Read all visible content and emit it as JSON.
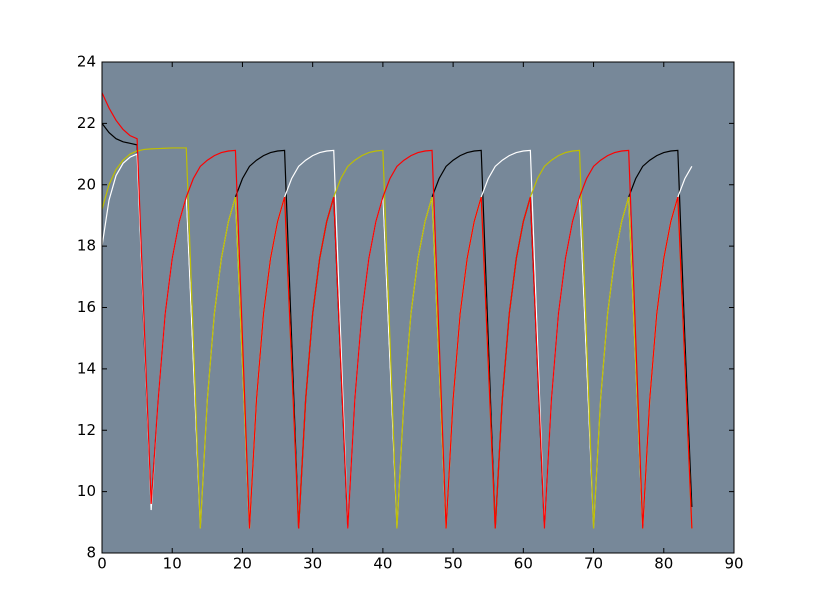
{
  "chart_data": {
    "type": "line",
    "x": [
      0,
      1,
      2,
      3,
      4,
      5,
      6,
      7,
      8,
      9,
      10,
      11,
      12,
      13,
      14,
      15,
      16,
      17,
      18,
      19,
      20,
      21,
      22,
      23,
      24,
      25,
      26,
      27,
      28,
      29,
      30,
      31,
      32,
      33,
      34,
      35,
      36,
      37,
      38,
      39,
      40,
      41,
      42,
      43,
      44,
      45,
      46,
      47,
      48,
      49,
      50,
      51,
      52,
      53,
      54,
      55,
      56,
      57,
      58,
      59,
      60,
      61,
      62,
      63,
      64,
      65,
      66,
      67,
      68,
      69,
      70,
      71,
      72,
      73,
      74,
      75,
      76,
      77,
      78,
      79,
      80,
      81,
      82,
      83,
      84
    ],
    "series": [
      {
        "color": "#000000",
        "values": [
          22.0,
          21.7,
          21.5,
          21.4,
          21.35,
          21.3,
          15.0,
          9.5,
          13.0,
          15.8,
          17.6,
          18.8,
          19.6,
          14.2,
          8.8,
          13.0,
          15.8,
          17.6,
          18.8,
          19.6,
          20.2,
          20.6,
          20.8,
          20.95,
          21.05,
          21.1,
          21.12,
          15.0,
          8.8,
          13.0,
          15.8,
          17.6,
          18.8,
          19.6,
          14.2,
          8.8,
          13.0,
          15.8,
          17.6,
          18.8,
          19.6,
          14.2,
          8.8,
          13.0,
          15.8,
          17.6,
          18.8,
          19.6,
          20.2,
          20.6,
          20.8,
          20.95,
          21.05,
          21.1,
          21.12,
          15.0,
          8.8,
          13.0,
          15.8,
          17.6,
          18.8,
          19.6,
          14.2,
          8.8,
          13.0,
          15.8,
          17.6,
          18.8,
          19.6,
          14.2,
          8.8,
          13.0,
          15.8,
          17.6,
          18.8,
          19.6,
          20.2,
          20.6,
          20.8,
          20.95,
          21.05,
          21.1,
          21.12,
          15.0,
          9.5
        ]
      },
      {
        "color": "#ffffff",
        "values": [
          18.0,
          19.5,
          20.3,
          20.7,
          20.9,
          21.0,
          15.2,
          9.4,
          13.0,
          15.8,
          17.6,
          18.8,
          19.6,
          14.2,
          8.8,
          13.0,
          15.8,
          17.6,
          18.8,
          19.6,
          14.2,
          8.8,
          13.0,
          15.8,
          17.6,
          18.8,
          19.6,
          20.2,
          20.6,
          20.8,
          20.95,
          21.05,
          21.1,
          21.12,
          15.0,
          8.8,
          13.0,
          15.8,
          17.6,
          18.8,
          19.6,
          14.2,
          8.8,
          13.0,
          15.8,
          17.6,
          18.8,
          19.6,
          14.2,
          8.8,
          13.0,
          15.8,
          17.6,
          18.8,
          19.6,
          20.2,
          20.6,
          20.8,
          20.95,
          21.05,
          21.1,
          21.12,
          15.0,
          8.8,
          13.0,
          15.8,
          17.6,
          18.8,
          19.6,
          14.2,
          8.8,
          13.0,
          15.8,
          17.6,
          18.8,
          19.6,
          14.2,
          8.8,
          13.0,
          15.8,
          17.6,
          18.8,
          19.6,
          20.2,
          20.6
        ]
      },
      {
        "color": "#bfbf00",
        "values": [
          19.2,
          20.0,
          20.5,
          20.8,
          21.0,
          21.1,
          21.15,
          21.17,
          21.18,
          21.19,
          21.2,
          21.2,
          21.2,
          15.0,
          8.8,
          13.0,
          15.8,
          17.6,
          18.8,
          19.6,
          14.2,
          8.8,
          13.0,
          15.8,
          17.6,
          18.8,
          19.6,
          14.2,
          8.8,
          13.0,
          15.8,
          17.6,
          18.8,
          19.6,
          20.2,
          20.6,
          20.8,
          20.95,
          21.05,
          21.1,
          21.12,
          15.0,
          8.8,
          13.0,
          15.8,
          17.6,
          18.8,
          19.6,
          14.2,
          8.8,
          13.0,
          15.8,
          17.6,
          18.8,
          19.6,
          14.2,
          8.8,
          13.0,
          15.8,
          17.6,
          18.8,
          19.6,
          20.2,
          20.6,
          20.8,
          20.95,
          21.05,
          21.1,
          21.12,
          15.0,
          8.8,
          13.0,
          15.8,
          17.6,
          18.8,
          19.6,
          14.2,
          8.8,
          13.0,
          15.8,
          17.6,
          18.8,
          19.6,
          14.2,
          8.8
        ]
      },
      {
        "color": "#ff0000",
        "values": [
          23.0,
          22.5,
          22.1,
          21.8,
          21.6,
          21.5,
          15.5,
          9.6,
          13.0,
          15.8,
          17.6,
          18.8,
          19.6,
          20.2,
          20.6,
          20.8,
          20.95,
          21.05,
          21.1,
          21.12,
          15.0,
          8.8,
          13.0,
          15.8,
          17.6,
          18.8,
          19.6,
          14.2,
          8.8,
          13.0,
          15.8,
          17.6,
          18.8,
          19.6,
          14.2,
          8.8,
          13.0,
          15.8,
          17.6,
          18.8,
          19.6,
          20.2,
          20.6,
          20.8,
          20.95,
          21.05,
          21.1,
          21.12,
          15.0,
          8.8,
          13.0,
          15.8,
          17.6,
          18.8,
          19.6,
          14.2,
          8.8,
          13.0,
          15.8,
          17.6,
          18.8,
          19.6,
          14.2,
          8.8,
          13.0,
          15.8,
          17.6,
          18.8,
          19.6,
          20.2,
          20.6,
          20.8,
          20.95,
          21.05,
          21.1,
          21.12,
          15.0,
          8.8,
          13.0,
          15.8,
          17.6,
          18.8,
          19.6,
          14.2,
          8.8
        ]
      }
    ],
    "xlim": [
      0,
      90
    ],
    "xticks": [
      0,
      10,
      20,
      30,
      40,
      50,
      60,
      70,
      80,
      90
    ],
    "ylim": [
      8,
      24
    ],
    "yticks": [
      8,
      10,
      12,
      14,
      16,
      18,
      20,
      22,
      24
    ],
    "background": "#778899"
  }
}
